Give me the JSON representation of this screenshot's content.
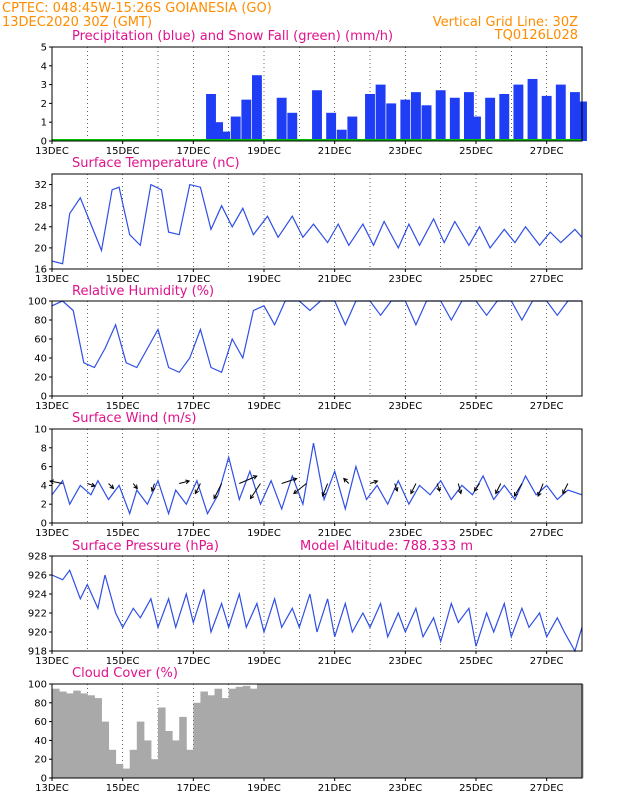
{
  "header": {
    "line1": "CPTEC:   048:45W-15:26S   GOIANESIA (GO)",
    "line2": "13DEC2020 30Z (GMT)",
    "grid_note": "Vertical Grid Line: 30Z",
    "code": "TQ0126L028"
  },
  "colors": {
    "precip": "#1f3df5",
    "snow": "#00c000",
    "line": "#2f4fe6",
    "wind_arrow": "#000000",
    "cloud": "#a9a9a9",
    "title": "#e0128c",
    "header": "#ff8c00"
  },
  "chart_data": [
    {
      "type": "bar",
      "title": "Precipitation (blue) and Snow Fall (green) (mm/h)",
      "ylim": [
        0,
        5
      ],
      "yticks": [
        0,
        1,
        2,
        3,
        4,
        5
      ],
      "xlim_days": [
        13,
        28
      ],
      "xticks": [
        "13DEC",
        "15DEC",
        "17DEC",
        "19DEC",
        "21DEC",
        "23DEC",
        "25DEC",
        "27DEC"
      ],
      "series": [
        {
          "name": "Precipitation",
          "x": [
            17.5,
            17.7,
            17.9,
            18.2,
            18.5,
            18.8,
            19.5,
            19.8,
            20.5,
            20.9,
            21.2,
            21.5,
            22.0,
            22.3,
            22.6,
            23.0,
            23.3,
            23.6,
            24.0,
            24.4,
            24.8,
            25.0,
            25.4,
            25.8,
            26.2,
            26.6,
            27.0,
            27.4,
            27.8,
            28.0
          ],
          "values": [
            2.5,
            1.0,
            0.5,
            1.3,
            2.2,
            3.5,
            2.3,
            1.5,
            2.7,
            1.5,
            0.6,
            1.3,
            2.5,
            3.0,
            2.0,
            2.2,
            2.6,
            1.9,
            2.7,
            2.3,
            2.6,
            1.3,
            2.3,
            2.5,
            3.0,
            3.3,
            2.4,
            3.0,
            2.6,
            2.1
          ]
        },
        {
          "name": "Snow Fall",
          "x": [
            13,
            28
          ],
          "values": [
            0,
            0
          ]
        }
      ]
    },
    {
      "type": "line",
      "title": "Surface Temperature (nC)",
      "ylim": [
        16,
        34
      ],
      "yticks": [
        16,
        20,
        24,
        28,
        32
      ],
      "xlim_days": [
        13,
        28
      ],
      "x": [
        13.0,
        13.3,
        13.5,
        13.8,
        14.1,
        14.4,
        14.7,
        14.9,
        15.2,
        15.5,
        15.8,
        16.1,
        16.3,
        16.6,
        16.9,
        17.2,
        17.5,
        17.8,
        18.1,
        18.4,
        18.7,
        19.1,
        19.4,
        19.8,
        20.1,
        20.4,
        20.8,
        21.1,
        21.4,
        21.8,
        22.1,
        22.4,
        22.8,
        23.1,
        23.4,
        23.8,
        24.1,
        24.4,
        24.8,
        25.1,
        25.4,
        25.8,
        26.1,
        26.4,
        26.8,
        27.1,
        27.4,
        27.8,
        28.0
      ],
      "values": [
        17.5,
        17.0,
        26.5,
        29.5,
        24.5,
        19.5,
        31.0,
        31.5,
        22.5,
        20.5,
        32.0,
        31.0,
        23.0,
        22.5,
        32.0,
        31.5,
        23.5,
        28.0,
        24.0,
        27.5,
        22.5,
        26.0,
        22.0,
        26.0,
        22.0,
        24.5,
        21.0,
        24.5,
        20.5,
        24.5,
        20.5,
        25.0,
        20.0,
        24.5,
        20.5,
        25.5,
        21.0,
        25.0,
        20.5,
        24.0,
        20.0,
        23.5,
        21.0,
        24.0,
        20.5,
        23.0,
        21.0,
        23.5,
        22.0
      ]
    },
    {
      "type": "line",
      "title": "Relative Humidity (%)",
      "ylim": [
        0,
        100
      ],
      "yticks": [
        0,
        20,
        40,
        60,
        80,
        100
      ],
      "xlim_days": [
        13,
        28
      ],
      "x": [
        13.0,
        13.3,
        13.6,
        13.9,
        14.2,
        14.5,
        14.8,
        15.1,
        15.4,
        15.7,
        16.0,
        16.3,
        16.6,
        16.9,
        17.2,
        17.5,
        17.8,
        18.1,
        18.4,
        18.7,
        19.0,
        19.3,
        19.6,
        20.0,
        20.3,
        20.6,
        21.0,
        21.3,
        21.6,
        22.0,
        22.3,
        22.6,
        23.0,
        23.3,
        23.6,
        24.0,
        24.3,
        24.6,
        25.0,
        25.3,
        25.6,
        26.0,
        26.3,
        26.6,
        27.0,
        27.3,
        27.6,
        28.0
      ],
      "values": [
        95,
        100,
        90,
        35,
        30,
        50,
        75,
        35,
        30,
        50,
        70,
        30,
        25,
        40,
        70,
        30,
        25,
        60,
        40,
        90,
        95,
        75,
        100,
        100,
        90,
        100,
        100,
        75,
        100,
        100,
        85,
        100,
        100,
        75,
        100,
        100,
        80,
        100,
        100,
        85,
        100,
        100,
        80,
        100,
        100,
        85,
        100,
        100
      ]
    },
    {
      "type": "line",
      "title": "Surface Wind (m/s)",
      "ylim": [
        0,
        10
      ],
      "yticks": [
        0,
        2,
        4,
        6,
        8,
        10
      ],
      "xlim_days": [
        13,
        28
      ],
      "x": [
        13.0,
        13.3,
        13.5,
        13.8,
        14.1,
        14.3,
        14.6,
        14.9,
        15.2,
        15.4,
        15.7,
        16.0,
        16.3,
        16.5,
        16.8,
        17.1,
        17.4,
        17.7,
        18.0,
        18.3,
        18.6,
        18.9,
        19.2,
        19.5,
        19.8,
        20.1,
        20.4,
        20.7,
        21.0,
        21.3,
        21.6,
        21.9,
        22.2,
        22.5,
        22.8,
        23.1,
        23.4,
        23.7,
        24.0,
        24.3,
        24.6,
        24.9,
        25.2,
        25.5,
        25.8,
        26.1,
        26.4,
        26.7,
        27.0,
        27.3,
        27.6,
        28.0
      ],
      "values": [
        3.0,
        4.5,
        2.0,
        4.0,
        3.0,
        4.5,
        2.5,
        4.0,
        1.0,
        3.5,
        2.0,
        4.5,
        1.0,
        3.5,
        2.0,
        4.5,
        1.0,
        3.0,
        7.0,
        2.5,
        5.5,
        2.0,
        4.5,
        1.5,
        5.0,
        2.0,
        8.5,
        2.5,
        5.5,
        1.5,
        6.0,
        2.5,
        4.0,
        2.0,
        4.5,
        2.0,
        4.0,
        3.0,
        4.5,
        2.5,
        4.0,
        3.0,
        5.0,
        2.5,
        4.0,
        2.5,
        5.0,
        3.0,
        4.0,
        2.5,
        3.5,
        3.0
      ],
      "arrows": {
        "x": [
          13.3,
          14.0,
          14.6,
          15.3,
          15.9,
          16.6,
          17.2,
          17.8,
          18.3,
          18.9,
          19.5,
          20.2,
          20.8,
          21.4,
          22.0,
          22.7,
          23.3,
          23.9,
          24.5,
          25.1,
          25.7,
          26.3,
          26.9,
          27.6
        ],
        "u": [
          -2.5,
          1.5,
          1.0,
          0.8,
          -0.5,
          2.0,
          -1.0,
          -1.5,
          3.5,
          -2.0,
          3.0,
          -2.5,
          -1.0,
          -1.0,
          1.5,
          0.5,
          -1.0,
          0.5,
          0.5,
          -1.0,
          -1.0,
          -1.5,
          -1.0,
          -1.0
        ],
        "v": [
          0.5,
          -0.5,
          -1.0,
          -1.0,
          -1.5,
          0.5,
          -2.0,
          -3.0,
          1.5,
          -3.0,
          1.0,
          -2.0,
          -2.5,
          1.0,
          0.5,
          -1.5,
          -2.0,
          -1.5,
          -2.0,
          -1.5,
          -2.0,
          -2.5,
          -2.5,
          -2.0
        ]
      }
    },
    {
      "type": "line",
      "title": "Surface Pressure (hPa)",
      "subtitle": "Model Altitude: 788.333 m",
      "ylim": [
        918,
        928
      ],
      "yticks": [
        918,
        920,
        922,
        924,
        926,
        928
      ],
      "xlim_days": [
        13,
        28
      ],
      "x": [
        13.0,
        13.3,
        13.5,
        13.8,
        14.0,
        14.3,
        14.5,
        14.8,
        15.0,
        15.3,
        15.5,
        15.8,
        16.0,
        16.3,
        16.5,
        16.8,
        17.0,
        17.3,
        17.5,
        17.8,
        18.0,
        18.3,
        18.5,
        18.8,
        19.0,
        19.3,
        19.5,
        19.8,
        20.0,
        20.3,
        20.5,
        20.8,
        21.0,
        21.3,
        21.5,
        21.8,
        22.0,
        22.3,
        22.5,
        22.8,
        23.0,
        23.3,
        23.5,
        23.8,
        24.0,
        24.3,
        24.5,
        24.8,
        25.0,
        25.3,
        25.5,
        25.8,
        26.0,
        26.3,
        26.5,
        26.8,
        27.0,
        27.3,
        27.5,
        27.8,
        28.0
      ],
      "values": [
        926.0,
        925.5,
        926.5,
        923.5,
        925.0,
        922.5,
        926.0,
        922.0,
        920.5,
        922.5,
        921.5,
        923.5,
        920.5,
        923.5,
        920.5,
        924.0,
        921.0,
        924.5,
        920.0,
        923.0,
        920.5,
        924.0,
        920.5,
        923.0,
        920.0,
        923.5,
        920.5,
        922.5,
        920.5,
        924.0,
        920.0,
        923.5,
        919.5,
        923.0,
        920.0,
        922.0,
        920.5,
        923.0,
        919.5,
        922.0,
        920.0,
        922.5,
        919.5,
        921.5,
        919.0,
        923.0,
        921.0,
        922.5,
        918.5,
        922.0,
        920.0,
        923.0,
        919.5,
        922.5,
        920.5,
        922.0,
        919.5,
        921.5,
        920.0,
        918.0,
        920.5
      ]
    },
    {
      "type": "bar",
      "title": "Cloud Cover (%)",
      "ylim": [
        0,
        100
      ],
      "yticks": [
        0,
        20,
        40,
        60,
        80,
        100
      ],
      "xlim_days": [
        13,
        28
      ],
      "x": [
        13.0,
        13.2,
        13.4,
        13.6,
        13.8,
        14.0,
        14.2,
        14.4,
        14.6,
        14.8,
        15.0,
        15.2,
        15.4,
        15.6,
        15.8,
        16.0,
        16.2,
        16.4,
        16.6,
        16.8,
        17.0,
        17.2,
        17.4,
        17.6,
        17.8,
        18.0,
        18.2,
        18.4,
        18.6,
        18.8,
        19.0,
        20.0,
        21.0,
        22.0,
        23.0,
        24.0,
        25.0,
        26.0,
        27.0,
        28.0
      ],
      "values": [
        95,
        92,
        90,
        93,
        90,
        88,
        85,
        60,
        30,
        15,
        10,
        30,
        60,
        40,
        20,
        75,
        50,
        40,
        65,
        30,
        80,
        92,
        88,
        95,
        85,
        95,
        97,
        98,
        95,
        100,
        100,
        100,
        100,
        100,
        100,
        100,
        100,
        100,
        100,
        100
      ]
    }
  ]
}
